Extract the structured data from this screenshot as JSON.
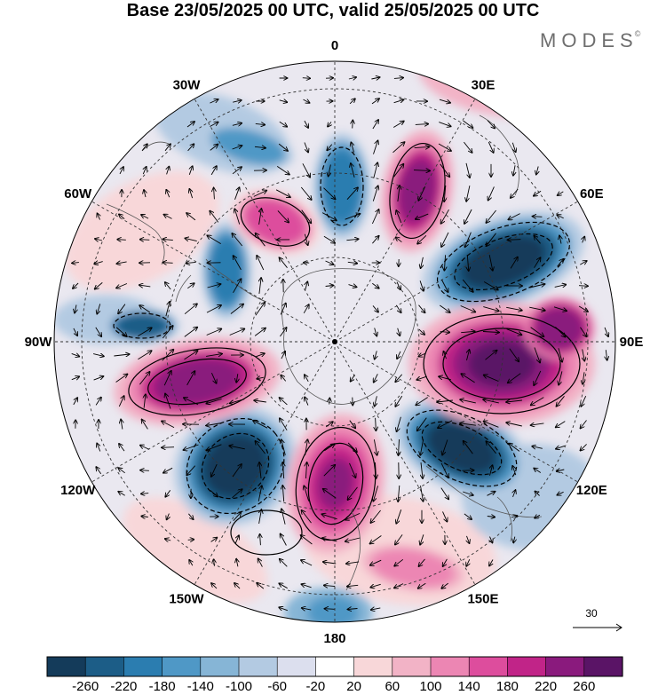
{
  "header": {
    "title": "Base 23/05/2025 00 UTC, valid 25/05/2025 00 UTC",
    "brand": "MODES",
    "brand_mark": "©"
  },
  "map": {
    "projection": "south-polar-stereographic",
    "longitude_labels": [
      {
        "text": "0",
        "lon": 0
      },
      {
        "text": "30E",
        "lon": 30
      },
      {
        "text": "60E",
        "lon": 60
      },
      {
        "text": "90E",
        "lon": 90
      },
      {
        "text": "120E",
        "lon": 120
      },
      {
        "text": "150E",
        "lon": 150
      },
      {
        "text": "180",
        "lon": 180
      },
      {
        "text": "150W",
        "lon": -150
      },
      {
        "text": "120W",
        "lon": -120
      },
      {
        "text": "90W",
        "lon": -90
      },
      {
        "text": "60W",
        "lon": -60
      },
      {
        "text": "30W",
        "lon": -30
      }
    ],
    "wind_reference": {
      "value": "30"
    }
  },
  "colorbar": {
    "tick_labels": [
      "-260",
      "-220",
      "-180",
      "-140",
      "-100",
      "-60",
      "-20",
      "20",
      "60",
      "100",
      "140",
      "180",
      "220",
      "260"
    ],
    "colors": [
      "#143b5a",
      "#1c5d87",
      "#2b7db0",
      "#4f98c6",
      "#86b5d6",
      "#b3cae2",
      "#dcdfee",
      "#ffffff",
      "#f8d7d9",
      "#f2b3c6",
      "#ec86b3",
      "#dd4d9d",
      "#c12488",
      "#8a1a7d",
      "#5a1466"
    ]
  }
}
